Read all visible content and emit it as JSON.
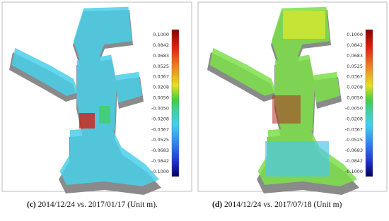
{
  "panels": [
    {
      "label": "(c)",
      "caption": "2014/12/24 vs. 2017/01/17 (Unit m).",
      "colorbar_labels": [
        "0.1000",
        "0.0842",
        "0.0683",
        "0.0525",
        "0.0367",
        "0.0208",
        "0.0050",
        "-0.0050",
        "-0.0208",
        "-0.0367",
        "-0.0525",
        "-0.0683",
        "-0.0842",
        "-0.1000"
      ]
    },
    {
      "label": "(d)",
      "caption": "2014/12/24 vs. 2017/07/18 (Unit m)",
      "colorbar_labels": [
        "0.1000",
        "0.0842",
        "0.0683",
        "0.0525",
        "0.0367",
        "0.0208",
        "0.0050",
        "-0.0050",
        "-0.0208",
        "-0.0367",
        "-0.0525",
        "-0.0683",
        "-0.0842",
        "-0.1000"
      ]
    }
  ]
}
